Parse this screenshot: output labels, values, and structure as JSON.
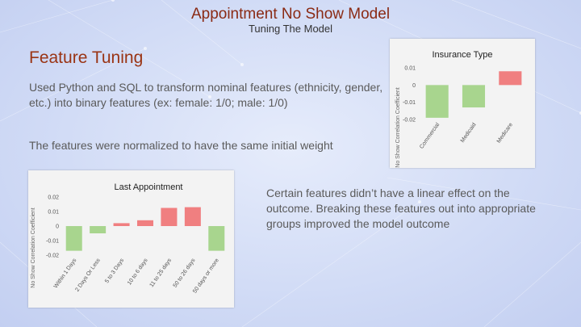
{
  "slide": {
    "title": "Appointment No Show Model",
    "subtitle": "Tuning The Model",
    "section_heading": "Feature Tuning",
    "text_1": "Used Python and SQL to transform nominal features (ethnicity, gender, etc.) into binary features (ex: female: 1/0; male: 1/0)",
    "text_2": "The features were normalized to have the same initial weight",
    "text_3": "Certain features didn’t have a linear effect on the outcome. Breaking these features out into appropriate groups improved the model outcome"
  },
  "colors": {
    "negative": "#a8d58e",
    "positive": "#f07f80",
    "title": "#8a2a14",
    "heading": "#9a3414"
  },
  "chart_data": [
    {
      "type": "bar",
      "title": "Insurance Type",
      "ylabel": "No Show Correlation Coefficient",
      "categories": [
        "Commercial",
        "Medicaid",
        "Medicare"
      ],
      "values": [
        -0.019,
        -0.013,
        0.008
      ],
      "ylim": [
        -0.02,
        0.01
      ],
      "yticks": [
        "0.01",
        "0",
        "-0.01",
        "-0.02"
      ],
      "ytick_values": [
        0.01,
        0,
        -0.01,
        -0.02
      ],
      "grid": false,
      "legend": "none"
    },
    {
      "type": "bar",
      "title": "Last Appointment",
      "ylabel": "No Show Correlation Coefficient",
      "categories": [
        "Within 1 Days",
        "2 Days Or Less",
        "5 to 3 Days",
        "10 to 6 days",
        "11 to 25 days",
        "50 to 26 days",
        "50 days or more"
      ],
      "values": [
        -0.017,
        -0.005,
        0.002,
        0.004,
        0.0125,
        0.013,
        -0.017
      ],
      "ylim": [
        -0.02,
        0.02
      ],
      "yticks": [
        "0.02",
        "0.01",
        "0",
        "-0.01",
        "-0.02"
      ],
      "ytick_values": [
        0.02,
        0.01,
        0,
        -0.01,
        -0.02
      ],
      "grid": false,
      "legend": "none"
    }
  ]
}
